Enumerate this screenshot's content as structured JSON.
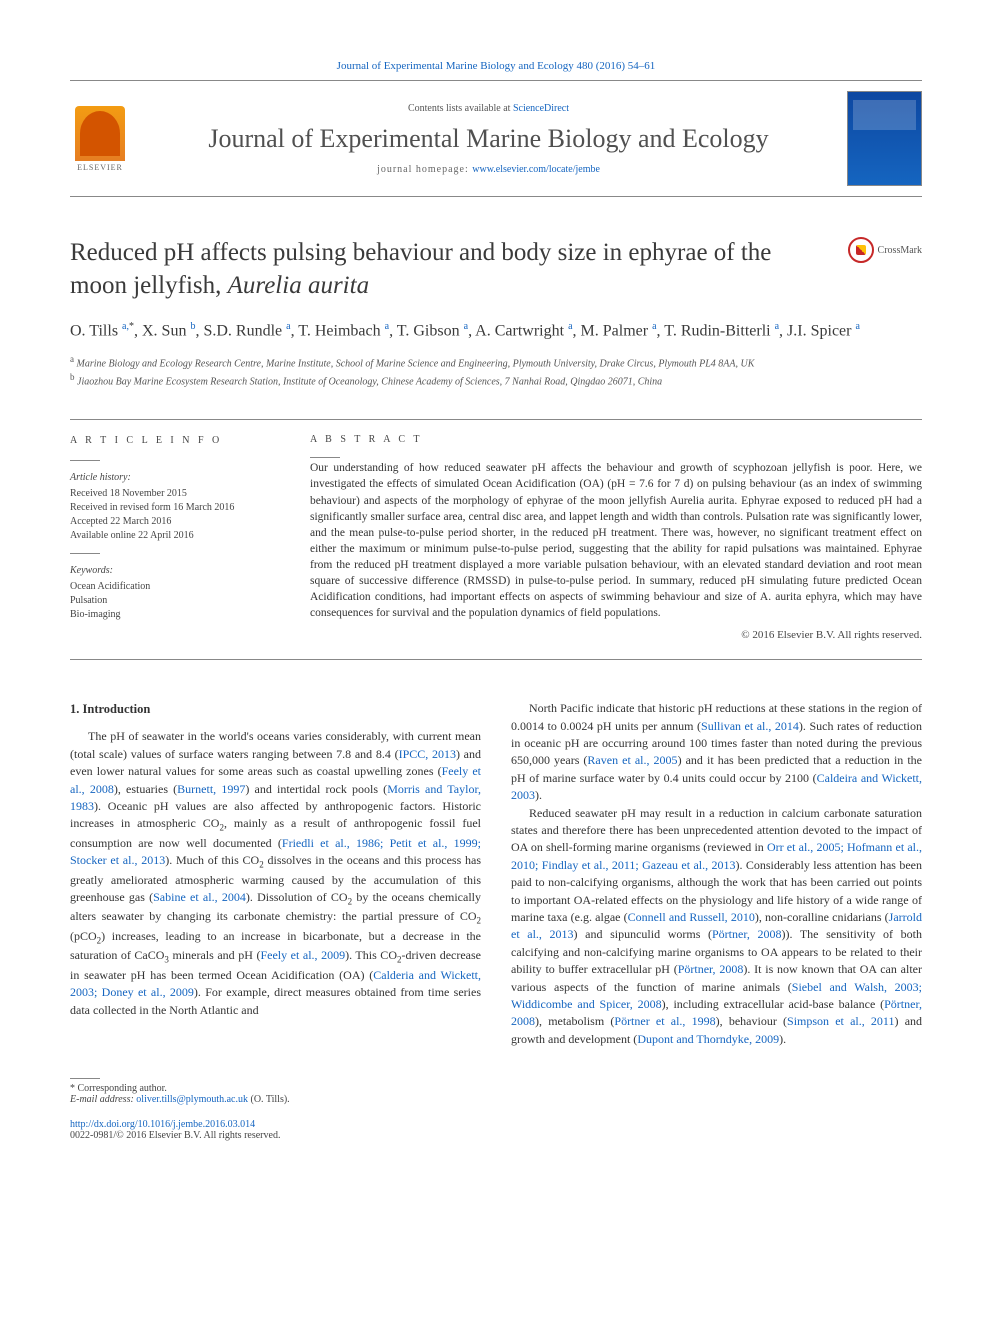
{
  "top_citation": "Journal of Experimental Marine Biology and Ecology 480 (2016) 54–61",
  "header": {
    "contents_prefix": "Contents lists available at ",
    "contents_link": "ScienceDirect",
    "journal_name": "Journal of Experimental Marine Biology and Ecology",
    "homepage_prefix": "journal homepage: ",
    "homepage_link": "www.elsevier.com/locate/jembe",
    "publisher": "ELSEVIER"
  },
  "crossmark_label": "CrossMark",
  "title_pre": "Reduced pH affects pulsing behaviour and body size in ephyrae of the moon jellyfish, ",
  "title_species": "Aurelia aurita",
  "authors_html": "O. Tills <sup>a,</sup><sup class=\"star\">*</sup>, X. Sun <sup>b</sup>, S.D. Rundle <sup>a</sup>, T. Heimbach <sup>a</sup>, T. Gibson <sup>a</sup>, A. Cartwright <sup>a</sup>, M. Palmer <sup>a</sup>, T. Rudin-Bitterli <sup>a</sup>, J.I. Spicer <sup>a</sup>",
  "affiliations": [
    {
      "sup": "a",
      "text": "Marine Biology and Ecology Research Centre, Marine Institute, School of Marine Science and Engineering, Plymouth University, Drake Circus, Plymouth PL4 8AA, UK"
    },
    {
      "sup": "b",
      "text": "Jiaozhou Bay Marine Ecosystem Research Station, Institute of Oceanology, Chinese Academy of Sciences, 7 Nanhai Road, Qingdao 26071, China"
    }
  ],
  "article_info": {
    "head": "A R T I C L E   I N F O",
    "history_head": "Article history:",
    "history": [
      "Received 18 November 2015",
      "Received in revised form 16 March 2016",
      "Accepted 22 March 2016",
      "Available online 22 April 2016"
    ],
    "keywords_head": "Keywords:",
    "keywords": [
      "Ocean Acidification",
      "Pulsation",
      "Bio-imaging"
    ]
  },
  "abstract": {
    "head": "A B S T R A C T",
    "text": "Our understanding of how reduced seawater pH affects the behaviour and growth of scyphozoan jellyfish is poor. Here, we investigated the effects of simulated Ocean Acidification (OA) (pH = 7.6 for 7 d) on pulsing behaviour (as an index of swimming behaviour) and aspects of the morphology of ephyrae of the moon jellyfish Aurelia aurita. Ephyrae exposed to reduced pH had a significantly smaller surface area, central disc area, and lappet length and width than controls. Pulsation rate was significantly lower, and the mean pulse-to-pulse period shorter, in the reduced pH treatment. There was, however, no significant treatment effect on either the maximum or minimum pulse-to-pulse period, suggesting that the ability for rapid pulsations was maintained. Ephyrae from the reduced pH treatment displayed a more variable pulsation behaviour, with an elevated standard deviation and root mean square of successive difference (RMSSD) in pulse-to-pulse period. In summary, reduced pH simulating future predicted Ocean Acidification conditions, had important effects on aspects of swimming behaviour and size of A. aurita ephyra, which may have consequences for survival and the population dynamics of field populations.",
    "copyright": "© 2016 Elsevier B.V. All rights reserved."
  },
  "intro_head": "1. Introduction",
  "intro_p1": "The pH of seawater in the world's oceans varies considerably, with current mean (total scale) values of surface waters ranging between 7.8 and 8.4 (<a>IPCC, 2013</a>) and even lower natural values for some areas such as coastal upwelling zones (<a>Feely et al., 2008</a>), estuaries (<a>Burnett, 1997</a>) and intertidal rock pools (<a>Morris and Taylor, 1983</a>). Oceanic pH values are also affected by anthropogenic factors. Historic increases in atmospheric CO<sub>2</sub>, mainly as a result of anthropogenic fossil fuel consumption are now well documented (<a>Friedli et al., 1986; Petit et al., 1999; Stocker et al., 2013</a>). Much of this CO<sub>2</sub> dissolves in the oceans and this process has greatly ameliorated atmospheric warming caused by the accumulation of this greenhouse gas (<a>Sabine et al., 2004</a>). Dissolution of CO<sub>2</sub> by the oceans chemically alters seawater by changing its carbonate chemistry: the partial pressure of CO<sub>2</sub> (pCO<sub>2</sub>) increases, leading to an increase in bicarbonate, but a decrease in the saturation of CaCO<sub>3</sub> minerals and pH (<a>Feely et al., 2009</a>). This CO<sub>2</sub>-driven decrease in seawater pH has been termed Ocean Acidification (OA) (<a>Calderia and Wickett, 2003; Doney et al., 2009</a>). For example, direct measures obtained from time series data collected in the North Atlantic and",
  "intro_p2": "North Pacific indicate that historic pH reductions at these stations in the region of 0.0014 to 0.0024 pH units per annum (<a>Sullivan et al., 2014</a>). Such rates of reduction in oceanic pH are occurring around 100 times faster than noted during the previous 650,000 years (<a>Raven et al., 2005</a>) and it has been predicted that a reduction in the pH of marine surface water by 0.4 units could occur by 2100 (<a>Caldeira and Wickett, 2003</a>).",
  "intro_p3": "Reduced seawater pH may result in a reduction in calcium carbonate saturation states and therefore there has been unprecedented attention devoted to the impact of OA on shell-forming marine organisms (reviewed in <a>Orr et al., 2005; Hofmann et al., 2010; Findlay et al., 2011; Gazeau et al., 2013</a>). Considerably less attention has been paid to non-calcifying organisms, although the work that has been carried out points to important OA-related effects on the physiology and life history of a wide range of marine taxa (e.g. algae (<a>Connell and Russell, 2010</a>), non-coralline cnidarians (<a>Jarrold et al., 2013</a>) and sipunculid worms (<a>Pörtner, 2008</a>)). The sensitivity of both calcifying and non-calcifying marine organisms to OA appears to be related to their ability to buffer extracellular pH (<a>Pörtner, 2008</a>). It is now known that OA can alter various aspects of the function of marine animals (<a>Siebel and Walsh, 2003; Widdicombe and Spicer, 2008</a>), including extracellular acid-base balance (<a>Pörtner, 2008</a>), metabolism (<a>Pörtner et al., 1998</a>), behaviour (<a>Simpson et al., 2011</a>) and growth and development (<a>Dupont and Thorndyke, 2009</a>).",
  "footer": {
    "corr": "* Corresponding author.",
    "email_label": "E-mail address: ",
    "email": "oliver.tills@plymouth.ac.uk",
    "email_name": " (O. Tills).",
    "doi": "http://dx.doi.org/10.1016/j.jembe.2016.03.014",
    "issn_line": "0022-0981/© 2016 Elsevier B.V. All rights reserved."
  },
  "colors": {
    "link": "#1565c0",
    "text": "#333333",
    "heading": "#3a3a3a",
    "rule": "#888888"
  }
}
